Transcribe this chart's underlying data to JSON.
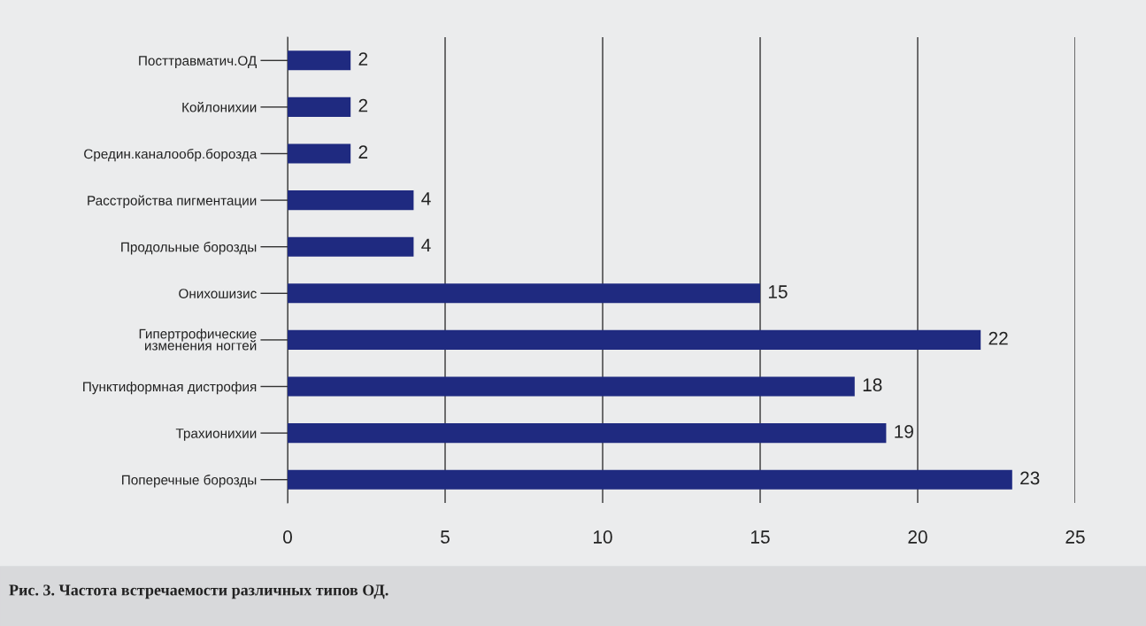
{
  "chart_data": {
    "type": "bar",
    "orientation": "horizontal",
    "categories": [
      "Посттравматич.ОД",
      "Койлонихии",
      "Средин.каналообр.борозда",
      "Расстройства пигментации",
      "Продольные борозды",
      "Онихошизис",
      "Гипертрофические\nизменения ногтей",
      "Пунктиформная дистрофия",
      "Трахионихии",
      "Поперечные борозды"
    ],
    "values": [
      2,
      2,
      2,
      4,
      4,
      15,
      22,
      18,
      19,
      23
    ],
    "color": "#1f2a80",
    "xlim": [
      0,
      25
    ],
    "xticks": [
      0,
      5,
      10,
      15,
      20,
      25
    ],
    "grid": "x",
    "data_labels": true,
    "annotations": [
      "Рис. 3. Частота встречаемости различных типов ОД."
    ]
  }
}
